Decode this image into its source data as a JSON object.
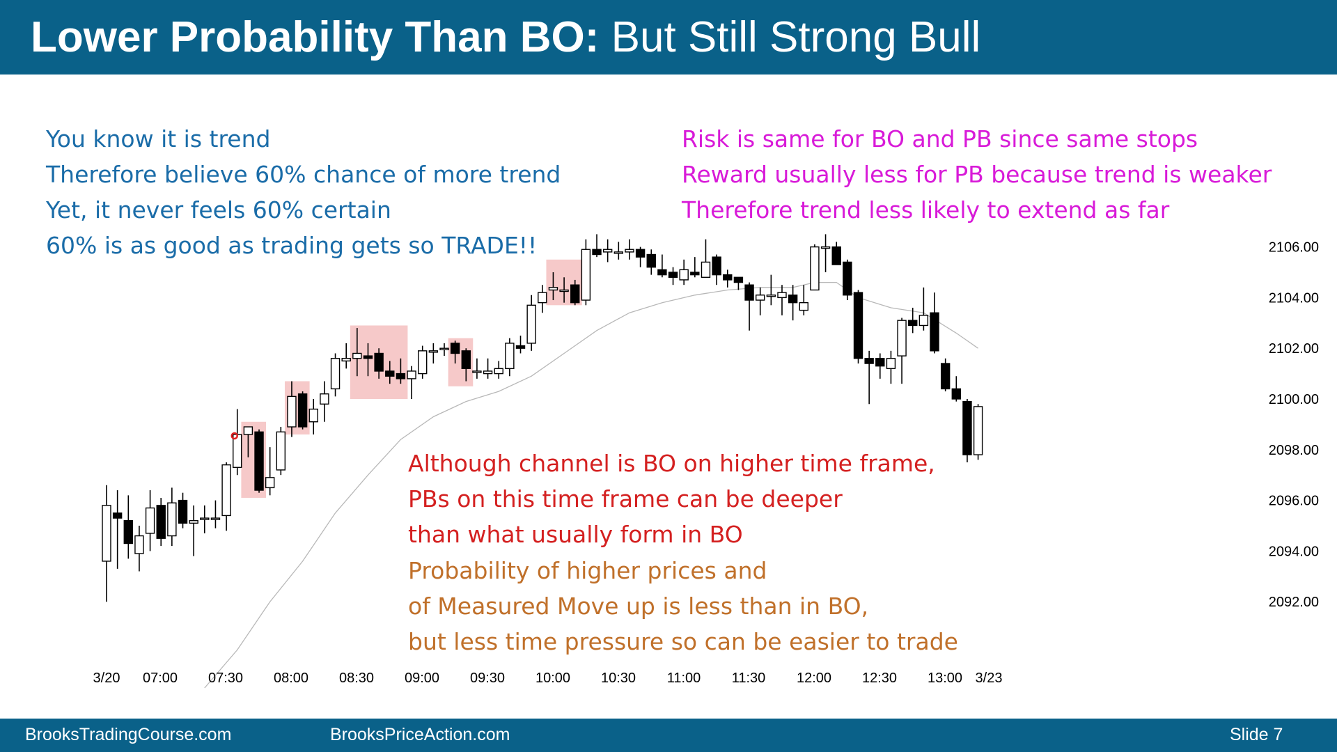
{
  "header": {
    "title_bold": "Lower Probability Than BO:",
    "title_rest": " But Still Strong Bull",
    "background": "#0a6189"
  },
  "notes": {
    "blue": [
      "You know it is trend",
      "Therefore believe 60% chance of more trend",
      "Yet, it never feels 60% certain",
      "60% is as good as trading gets so TRADE!!"
    ],
    "magenta": [
      "Risk is same for BO and PB since same stops",
      "Reward usually less for PB because trend is weaker",
      "Therefore trend less likely to extend as far"
    ],
    "red": [
      "Although channel is BO on higher time frame,",
      "PBs on this time frame can be deeper",
      "than what usually form in BO"
    ],
    "orange": [
      "Probability of higher prices and",
      "of Measured Move up is less than in BO,",
      "but less time pressure so can be easier to trade"
    ],
    "colors": {
      "blue": "#1a6ca8",
      "magenta": "#d81ad8",
      "red": "#d42020",
      "orange": "#c0702a"
    }
  },
  "footer": {
    "site1": "BrooksTradingCourse.com",
    "site2": "BrooksPriceAction.com",
    "slide": "Slide  7"
  },
  "chart_data": {
    "type": "candlestick",
    "y_ticks": [
      "2106.00",
      "2104.00",
      "2102.00",
      "2100.00",
      "2098.00",
      "2096.00",
      "2094.00",
      "2092.00"
    ],
    "x_ticks": [
      "3/20",
      "07:00",
      "07:30",
      "08:00",
      "08:30",
      "09:00",
      "09:30",
      "10:00",
      "10:30",
      "11:00",
      "11:30",
      "12:00",
      "12:30",
      "13:00",
      "3/23"
    ],
    "ylim": [
      2091.0,
      2107.5
    ],
    "bar_interval_min": 5,
    "bars": [
      {
        "t": "06:45",
        "o": 2093.6,
        "h": 2096.6,
        "l": 2092.0,
        "c": 2095.8
      },
      {
        "t": "06:50",
        "o": 2095.5,
        "h": 2096.4,
        "l": 2093.3,
        "c": 2095.3
      },
      {
        "t": "06:55",
        "o": 2095.2,
        "h": 2096.2,
        "l": 2093.7,
        "c": 2094.3
      },
      {
        "t": "07:00",
        "o": 2093.9,
        "h": 2095.0,
        "l": 2093.2,
        "c": 2094.6
      },
      {
        "t": "07:05",
        "o": 2094.7,
        "h": 2096.4,
        "l": 2094.0,
        "c": 2095.7
      },
      {
        "t": "07:10",
        "o": 2095.8,
        "h": 2096.1,
        "l": 2094.2,
        "c": 2094.5
      },
      {
        "t": "07:15",
        "o": 2094.6,
        "h": 2096.5,
        "l": 2094.2,
        "c": 2095.9
      },
      {
        "t": "07:20",
        "o": 2096.0,
        "h": 2096.3,
        "l": 2094.9,
        "c": 2095.1
      },
      {
        "t": "07:25",
        "o": 2095.1,
        "h": 2095.8,
        "l": 2093.8,
        "c": 2095.2
      },
      {
        "t": "07:30",
        "o": 2095.3,
        "h": 2095.8,
        "l": 2094.7,
        "c": 2095.3
      },
      {
        "t": "07:35",
        "o": 2095.3,
        "h": 2096.0,
        "l": 2094.9,
        "c": 2095.3
      },
      {
        "t": "07:40",
        "o": 2095.4,
        "h": 2097.5,
        "l": 2094.8,
        "c": 2097.4
      },
      {
        "t": "07:45",
        "o": 2097.3,
        "h": 2099.6,
        "l": 2097.0,
        "c": 2098.6
      },
      {
        "t": "07:50",
        "o": 2098.6,
        "h": 2098.9,
        "l": 2097.7,
        "c": 2098.9
      },
      {
        "t": "07:55",
        "o": 2098.7,
        "h": 2098.8,
        "l": 2096.3,
        "c": 2096.4
      },
      {
        "t": "08:00",
        "o": 2096.5,
        "h": 2098.1,
        "l": 2096.2,
        "c": 2096.9
      },
      {
        "t": "08:05",
        "o": 2097.2,
        "h": 2098.9,
        "l": 2097.0,
        "c": 2098.7
      },
      {
        "t": "08:10",
        "o": 2098.9,
        "h": 2100.7,
        "l": 2098.5,
        "c": 2100.1
      },
      {
        "t": "08:15",
        "o": 2100.2,
        "h": 2100.3,
        "l": 2098.8,
        "c": 2098.9
      },
      {
        "t": "08:20",
        "o": 2099.1,
        "h": 2100.0,
        "l": 2098.6,
        "c": 2099.6
      },
      {
        "t": "08:25",
        "o": 2099.8,
        "h": 2100.7,
        "l": 2099.1,
        "c": 2100.2
      },
      {
        "t": "08:30",
        "o": 2100.4,
        "h": 2101.8,
        "l": 2100.1,
        "c": 2101.6
      },
      {
        "t": "08:35",
        "o": 2101.5,
        "h": 2102.2,
        "l": 2101.2,
        "c": 2101.6
      },
      {
        "t": "08:40",
        "o": 2101.6,
        "h": 2102.8,
        "l": 2100.9,
        "c": 2101.8
      },
      {
        "t": "08:45",
        "o": 2101.7,
        "h": 2102.2,
        "l": 2100.9,
        "c": 2101.6
      },
      {
        "t": "08:50",
        "o": 2101.8,
        "h": 2102.0,
        "l": 2100.8,
        "c": 2101.1
      },
      {
        "t": "08:55",
        "o": 2101.1,
        "h": 2101.5,
        "l": 2100.6,
        "c": 2100.9
      },
      {
        "t": "09:00",
        "o": 2101.0,
        "h": 2101.6,
        "l": 2100.6,
        "c": 2100.8
      },
      {
        "t": "09:05",
        "o": 2100.8,
        "h": 2101.3,
        "l": 2100.0,
        "c": 2101.1
      },
      {
        "t": "09:10",
        "o": 2101.0,
        "h": 2102.1,
        "l": 2100.8,
        "c": 2101.9
      },
      {
        "t": "09:15",
        "o": 2101.9,
        "h": 2102.2,
        "l": 2101.4,
        "c": 2101.9
      },
      {
        "t": "09:20",
        "o": 2102.0,
        "h": 2102.2,
        "l": 2101.7,
        "c": 2102.0
      },
      {
        "t": "09:25",
        "o": 2102.2,
        "h": 2102.3,
        "l": 2101.4,
        "c": 2101.8
      },
      {
        "t": "09:30",
        "o": 2101.9,
        "h": 2102.0,
        "l": 2100.7,
        "c": 2101.2
      },
      {
        "t": "09:35",
        "o": 2101.1,
        "h": 2101.6,
        "l": 2100.8,
        "c": 2101.1
      },
      {
        "t": "09:40",
        "o": 2101.0,
        "h": 2101.6,
        "l": 2100.8,
        "c": 2101.1
      },
      {
        "t": "09:45",
        "o": 2101.0,
        "h": 2101.5,
        "l": 2100.8,
        "c": 2101.2
      },
      {
        "t": "09:50",
        "o": 2101.2,
        "h": 2102.4,
        "l": 2100.9,
        "c": 2102.2
      },
      {
        "t": "09:55",
        "o": 2102.1,
        "h": 2102.5,
        "l": 2101.8,
        "c": 2102.0
      },
      {
        "t": "10:00",
        "o": 2102.2,
        "h": 2104.1,
        "l": 2101.9,
        "c": 2103.7
      },
      {
        "t": "10:05",
        "o": 2103.8,
        "h": 2104.5,
        "l": 2103.4,
        "c": 2104.2
      },
      {
        "t": "10:10",
        "o": 2104.3,
        "h": 2105.0,
        "l": 2103.9,
        "c": 2104.4
      },
      {
        "t": "10:15",
        "o": 2104.3,
        "h": 2104.8,
        "l": 2103.8,
        "c": 2104.3
      },
      {
        "t": "10:20",
        "o": 2104.5,
        "h": 2104.7,
        "l": 2103.7,
        "c": 2103.8
      },
      {
        "t": "10:25",
        "o": 2103.9,
        "h": 2106.3,
        "l": 2103.7,
        "c": 2105.9
      },
      {
        "t": "10:30",
        "o": 2105.9,
        "h": 2106.5,
        "l": 2105.6,
        "c": 2105.7
      },
      {
        "t": "10:35",
        "o": 2105.8,
        "h": 2106.3,
        "l": 2105.4,
        "c": 2105.9
      },
      {
        "t": "10:40",
        "o": 2105.8,
        "h": 2106.2,
        "l": 2105.5,
        "c": 2105.8
      },
      {
        "t": "10:45",
        "o": 2105.8,
        "h": 2106.3,
        "l": 2105.5,
        "c": 2105.9
      },
      {
        "t": "10:50",
        "o": 2105.9,
        "h": 2106.0,
        "l": 2105.2,
        "c": 2105.6
      },
      {
        "t": "10:55",
        "o": 2105.7,
        "h": 2105.9,
        "l": 2104.9,
        "c": 2105.2
      },
      {
        "t": "11:00",
        "o": 2105.1,
        "h": 2105.7,
        "l": 2104.8,
        "c": 2104.9
      },
      {
        "t": "11:05",
        "o": 2105.0,
        "h": 2105.2,
        "l": 2104.5,
        "c": 2104.8
      },
      {
        "t": "11:10",
        "o": 2104.7,
        "h": 2105.5,
        "l": 2104.5,
        "c": 2105.1
      },
      {
        "t": "11:15",
        "o": 2105.0,
        "h": 2105.6,
        "l": 2104.8,
        "c": 2104.9
      },
      {
        "t": "11:20",
        "o": 2104.8,
        "h": 2106.3,
        "l": 2104.8,
        "c": 2105.4
      },
      {
        "t": "11:25",
        "o": 2105.6,
        "h": 2105.7,
        "l": 2104.5,
        "c": 2104.9
      },
      {
        "t": "11:30",
        "o": 2104.9,
        "h": 2105.1,
        "l": 2104.4,
        "c": 2104.7
      },
      {
        "t": "11:35",
        "o": 2104.8,
        "h": 2104.8,
        "l": 2104.3,
        "c": 2104.6
      },
      {
        "t": "11:40",
        "o": 2104.5,
        "h": 2104.6,
        "l": 2102.7,
        "c": 2103.9
      },
      {
        "t": "11:45",
        "o": 2103.9,
        "h": 2104.4,
        "l": 2103.3,
        "c": 2104.1
      },
      {
        "t": "11:50",
        "o": 2104.1,
        "h": 2104.9,
        "l": 2103.7,
        "c": 2104.1
      },
      {
        "t": "11:55",
        "o": 2104.0,
        "h": 2104.5,
        "l": 2103.3,
        "c": 2104.2
      },
      {
        "t": "12:00",
        "o": 2104.1,
        "h": 2104.5,
        "l": 2103.1,
        "c": 2103.8
      },
      {
        "t": "12:05",
        "o": 2103.5,
        "h": 2104.5,
        "l": 2103.3,
        "c": 2103.8
      },
      {
        "t": "12:10",
        "o": 2104.3,
        "h": 2106.1,
        "l": 2104.3,
        "c": 2106.0
      },
      {
        "t": "12:15",
        "o": 2106.0,
        "h": 2106.5,
        "l": 2105.0,
        "c": 2106.0
      },
      {
        "t": "12:20",
        "o": 2106.0,
        "h": 2106.2,
        "l": 2105.3,
        "c": 2105.3
      },
      {
        "t": "12:25",
        "o": 2105.4,
        "h": 2105.5,
        "l": 2103.9,
        "c": 2104.1
      },
      {
        "t": "12:30",
        "o": 2104.2,
        "h": 2104.3,
        "l": 2101.4,
        "c": 2101.6
      },
      {
        "t": "12:35",
        "o": 2101.6,
        "h": 2101.9,
        "l": 2099.8,
        "c": 2101.4
      },
      {
        "t": "12:40",
        "o": 2101.6,
        "h": 2101.8,
        "l": 2100.8,
        "c": 2101.3
      },
      {
        "t": "12:45",
        "o": 2101.2,
        "h": 2101.9,
        "l": 2100.6,
        "c": 2101.6
      },
      {
        "t": "12:50",
        "o": 2101.7,
        "h": 2103.2,
        "l": 2100.6,
        "c": 2103.1
      },
      {
        "t": "12:55",
        "o": 2103.1,
        "h": 2103.6,
        "l": 2102.6,
        "c": 2102.9
      },
      {
        "t": "13:00",
        "o": 2102.9,
        "h": 2104.4,
        "l": 2102.7,
        "c": 2103.3
      },
      {
        "t": "13:05",
        "o": 2103.4,
        "h": 2104.2,
        "l": 2101.8,
        "c": 2101.9
      },
      {
        "t": "13:10",
        "o": 2101.4,
        "h": 2101.6,
        "l": 2100.3,
        "c": 2100.4
      },
      {
        "t": "13:15",
        "o": 2100.4,
        "h": 2100.9,
        "l": 2099.9,
        "c": 2100.0
      },
      {
        "t": "13:20",
        "o": 2099.9,
        "h": 2100.0,
        "l": 2097.5,
        "c": 2097.8
      },
      {
        "t": "13:25",
        "o": 2097.8,
        "h": 2099.8,
        "l": 2097.6,
        "c": 2099.7
      }
    ],
    "moving_average": [
      {
        "t": "07:30",
        "v": 2088.6
      },
      {
        "t": "07:45",
        "v": 2090.1
      },
      {
        "t": "08:00",
        "v": 2092.0
      },
      {
        "t": "08:15",
        "v": 2093.6
      },
      {
        "t": "08:30",
        "v": 2095.5
      },
      {
        "t": "08:45",
        "v": 2097.0
      },
      {
        "t": "09:00",
        "v": 2098.4
      },
      {
        "t": "09:15",
        "v": 2099.3
      },
      {
        "t": "09:30",
        "v": 2099.9
      },
      {
        "t": "09:45",
        "v": 2100.3
      },
      {
        "t": "10:00",
        "v": 2100.9
      },
      {
        "t": "10:15",
        "v": 2101.8
      },
      {
        "t": "10:30",
        "v": 2102.7
      },
      {
        "t": "10:45",
        "v": 2103.4
      },
      {
        "t": "11:00",
        "v": 2103.8
      },
      {
        "t": "11:15",
        "v": 2104.1
      },
      {
        "t": "11:30",
        "v": 2104.3
      },
      {
        "t": "11:45",
        "v": 2104.4
      },
      {
        "t": "12:00",
        "v": 2104.4
      },
      {
        "t": "12:10",
        "v": 2104.6
      },
      {
        "t": "12:20",
        "v": 2104.6
      },
      {
        "t": "12:30",
        "v": 2104.0
      },
      {
        "t": "12:45",
        "v": 2103.6
      },
      {
        "t": "13:00",
        "v": 2103.4
      },
      {
        "t": "13:15",
        "v": 2102.6
      },
      {
        "t": "13:25",
        "v": 2102.0
      }
    ],
    "highlights": [
      {
        "start": "07:50",
        "end": "07:55",
        "low": 2096.1,
        "high": 2099.1
      },
      {
        "start": "08:10",
        "end": "08:15",
        "low": 2098.6,
        "high": 2100.7
      },
      {
        "start": "08:40",
        "end": "09:00",
        "low": 2100.0,
        "high": 2102.9
      },
      {
        "start": "09:25",
        "end": "09:30",
        "low": 2100.5,
        "high": 2102.4
      },
      {
        "start": "10:10",
        "end": "10:20",
        "low": 2103.7,
        "high": 2105.5
      }
    ],
    "marker": {
      "t": "07:45",
      "v": 2098.6,
      "color": "#e02020"
    },
    "colors": {
      "bull_body": "#ffffff",
      "bear_body": "#000000",
      "wick": "#000000",
      "moving_average": "#b8b8b8",
      "highlight": "#f6c9c9"
    }
  }
}
